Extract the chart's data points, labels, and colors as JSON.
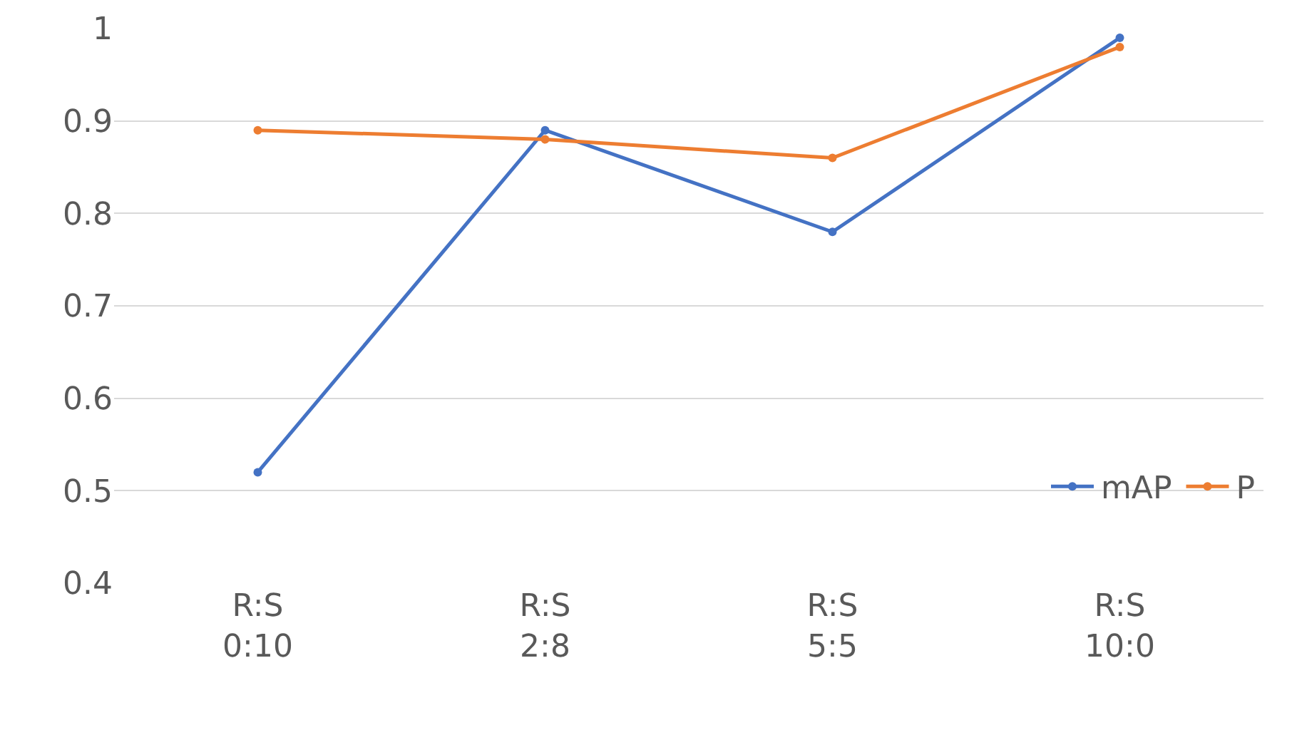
{
  "chart_data": {
    "type": "line",
    "categories": [
      "R:S\n0:10",
      "R:S\n2:8",
      "R:S\n5:5",
      "R:S\n10:0"
    ],
    "series": [
      {
        "name": "mAP",
        "color": "#4472c4",
        "values": [
          0.52,
          0.89,
          0.78,
          0.99
        ]
      },
      {
        "name": "P",
        "color": "#ed7d31",
        "values": [
          0.89,
          0.88,
          0.86,
          0.98
        ]
      }
    ],
    "ylim": [
      0.4,
      1
    ],
    "yticks": [
      0.4,
      0.5,
      0.6,
      0.7,
      0.8,
      0.9,
      1
    ],
    "grid": "y",
    "legend": "bottom right",
    "marker": "circle",
    "line_style": "solid"
  }
}
